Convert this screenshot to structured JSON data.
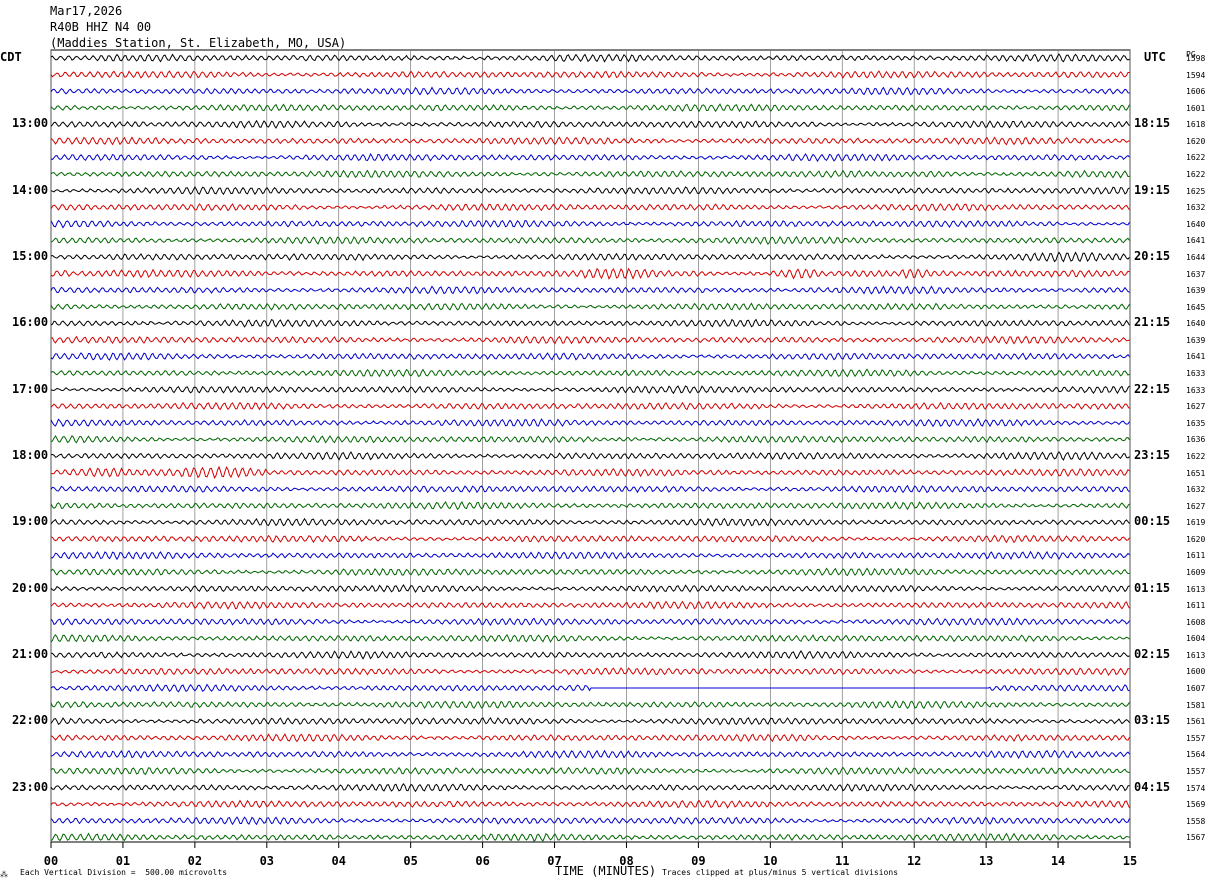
{
  "header": {
    "date": "Mar17,2026",
    "channel": "R40B HHZ N4 00",
    "location": "(Maddies Station, St. Elizabeth, MO, USA)"
  },
  "corners": {
    "left_label": "CDT",
    "right_label": "UTC",
    "far_right_label": "PG"
  },
  "chart_data": {
    "type": "line",
    "title": "Mar17,2026 R40B HHZ N4 00 (Maddies Station, St. Elizabeth, MO, USA)",
    "xlabel": "TIME (MINUTES)",
    "xlim": [
      0,
      15
    ],
    "x_ticks": [
      "00",
      "01",
      "02",
      "03",
      "04",
      "05",
      "06",
      "07",
      "08",
      "09",
      "10",
      "11",
      "12",
      "13",
      "14",
      "15"
    ],
    "grid": true,
    "trace_minutes": 15,
    "trace_colors": [
      "#000000",
      "#d40000",
      "#0000cc",
      "#006600"
    ],
    "left_time_labels": [
      "13:00",
      "14:00",
      "15:00",
      "16:00",
      "17:00",
      "18:00",
      "19:00",
      "20:00",
      "21:00",
      "22:00",
      "23:00"
    ],
    "right_time_labels": [
      "18:15",
      "19:15",
      "20:15",
      "21:15",
      "22:15",
      "23:15",
      "00:15",
      "01:15",
      "02:15",
      "03:15",
      "04:15"
    ],
    "trace_rms": [
      "1598",
      "1594",
      "1606",
      "1601",
      "1618",
      "1620",
      "1622",
      "1622",
      "1625",
      "1632",
      "1640",
      "1641",
      "1644",
      "1637",
      "1639",
      "1645",
      "1640",
      "1639",
      "1641",
      "1633",
      "1633",
      "1627",
      "1635",
      "1636",
      "1622",
      "1651",
      "1632",
      "1627",
      "1619",
      "1620",
      "1611",
      "1609",
      "1613",
      "1611",
      "1608",
      "1604",
      "1613",
      "1600",
      "1607",
      "1581",
      "1561",
      "1557",
      "1564",
      "1557",
      "1574",
      "1569",
      "1558",
      "1567"
    ],
    "events": [
      {
        "trace": 7,
        "start_min": 12.0,
        "end_min": 12.6,
        "amp": 1.6
      },
      {
        "trace": 12,
        "start_min": 13.6,
        "end_min": 14.6,
        "amp": 1.5
      },
      {
        "trace": 13,
        "start_min": 0.0,
        "end_min": 0.3,
        "amp": 1.7
      },
      {
        "trace": 13,
        "start_min": 7.3,
        "end_min": 8.4,
        "amp": 1.6
      },
      {
        "trace": 13,
        "start_min": 10.0,
        "end_min": 10.7,
        "amp": 3.0
      },
      {
        "trace": 13,
        "start_min": 11.8,
        "end_min": 12.2,
        "amp": 2.0
      },
      {
        "trace": 24,
        "start_min": 12.0,
        "end_min": 14.6,
        "amp": 1.4
      },
      {
        "trace": 25,
        "start_min": 0.0,
        "end_min": 1.0,
        "amp": 2.0
      },
      {
        "trace": 25,
        "start_min": 1.8,
        "end_min": 3.0,
        "amp": 2.0
      }
    ],
    "gaps": [
      {
        "trace": 38,
        "start_min": 7.5,
        "end_min": 13.05
      }
    ]
  },
  "footer": {
    "scale_note": "Each Vertical Division =  500.00 microvolts",
    "axis_title": "TIME (MINUTES)",
    "clip_note": "Traces clipped at plus/minus 5 vertical divisions"
  }
}
